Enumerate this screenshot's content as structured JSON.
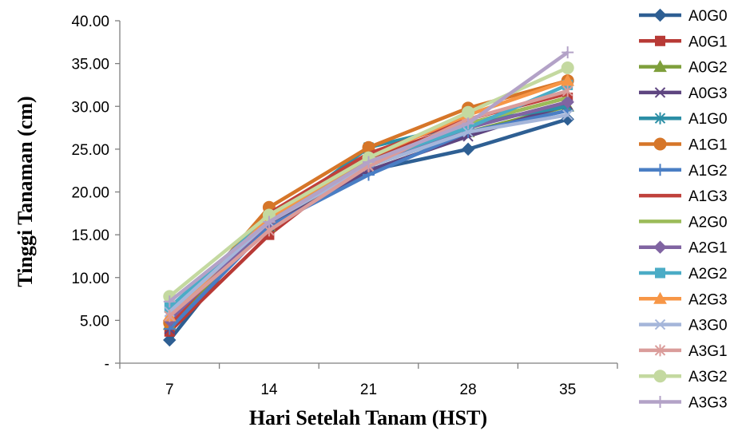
{
  "chart_data": {
    "type": "line",
    "title": "",
    "xlabel": "Hari Setelah Tanam (HST)",
    "ylabel": "Tinggi Tanaman (cm)",
    "categories": [
      "7",
      "14",
      "21",
      "28",
      "35"
    ],
    "ylim": [
      0,
      40
    ],
    "yticks": [
      "-",
      "5.00",
      "10.00",
      "15.00",
      "20.00",
      "25.00",
      "30.00",
      "35.00",
      "40.00"
    ],
    "grid": false,
    "legend_position": "right",
    "series": [
      {
        "name": "A0G0",
        "values": [
          2.7,
          17.3,
          22.5,
          25.0,
          28.5
        ],
        "color": "#2E5F93",
        "marker": "diamond"
      },
      {
        "name": "A0G1",
        "values": [
          3.7,
          15.0,
          24.0,
          28.0,
          31.0
        ],
        "color": "#B83A36",
        "marker": "square"
      },
      {
        "name": "A0G2",
        "values": [
          4.5,
          16.0,
          23.0,
          27.0,
          30.0
        ],
        "color": "#7E9F3B",
        "marker": "triangle"
      },
      {
        "name": "A0G3",
        "values": [
          4.0,
          16.0,
          22.5,
          26.5,
          30.2
        ],
        "color": "#5E4580",
        "marker": "x"
      },
      {
        "name": "A1G0",
        "values": [
          5.5,
          16.5,
          25.2,
          28.0,
          30.0
        ],
        "color": "#2C8FA6",
        "marker": "asterisk"
      },
      {
        "name": "A1G1",
        "values": [
          4.7,
          18.2,
          25.2,
          29.8,
          33.0
        ],
        "color": "#D67629",
        "marker": "circle"
      },
      {
        "name": "A1G2",
        "values": [
          4.0,
          16.0,
          22.0,
          27.0,
          29.5
        ],
        "color": "#4A7EC4",
        "marker": "plus"
      },
      {
        "name": "A1G3",
        "values": [
          4.5,
          17.5,
          24.5,
          28.5,
          31.5
        ],
        "color": "#C0413C",
        "marker": "none"
      },
      {
        "name": "A2G0",
        "values": [
          6.0,
          17.0,
          23.5,
          28.0,
          31.0
        ],
        "color": "#9BBB59",
        "marker": "none"
      },
      {
        "name": "A2G1",
        "values": [
          5.0,
          16.5,
          23.0,
          27.5,
          30.5
        ],
        "color": "#8064A2",
        "marker": "diamond"
      },
      {
        "name": "A2G2",
        "values": [
          6.5,
          17.0,
          23.5,
          27.5,
          32.5
        ],
        "color": "#4BACC6",
        "marker": "square"
      },
      {
        "name": "A2G3",
        "values": [
          5.5,
          17.0,
          24.0,
          29.0,
          33.0
        ],
        "color": "#F79646",
        "marker": "triangle"
      },
      {
        "name": "A3G0",
        "values": [
          6.0,
          16.5,
          23.0,
          27.0,
          29.0
        ],
        "color": "#A5B6DA",
        "marker": "x"
      },
      {
        "name": "A3G1",
        "values": [
          5.5,
          15.5,
          23.0,
          28.5,
          31.8
        ],
        "color": "#DA9C9A",
        "marker": "asterisk"
      },
      {
        "name": "A3G2",
        "values": [
          7.8,
          17.3,
          24.0,
          29.3,
          34.5
        ],
        "color": "#C4D9A0",
        "marker": "circle"
      },
      {
        "name": "A3G3",
        "values": [
          7.2,
          16.5,
          23.5,
          28.0,
          36.3
        ],
        "color": "#B3A2C7",
        "marker": "plus"
      }
    ]
  }
}
